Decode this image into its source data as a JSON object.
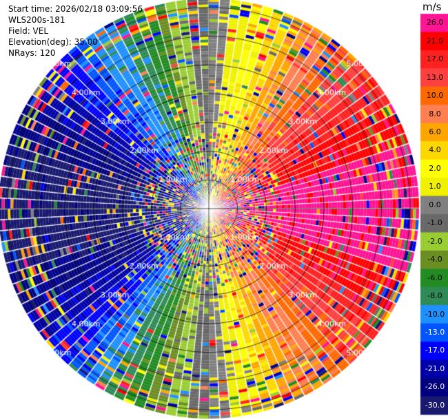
{
  "header": {
    "start_time": "Start time: 2026/02/18 03:09:56",
    "instrument": "WLS200s-181",
    "field": "Field: VEL",
    "elevation": "Elevation(deg): 35.00",
    "nrays": "NRays: 120"
  },
  "radar": {
    "range_ring_labels": [
      "1.00km",
      "2.00km",
      "3.00km",
      "4.00km",
      "5.00km"
    ],
    "num_rays": 120
  },
  "colorbar": {
    "unit": "m/s",
    "labels": [
      "26.0",
      "21.0",
      "17.0",
      "13.0",
      "10.0",
      "8.0",
      "6.0",
      "4.0",
      "2.0",
      "1.0",
      "0.0",
      "-1.0",
      "-2.0",
      "-4.0",
      "-6.0",
      "-8.0",
      "-10.0",
      "-13.0",
      "-17.0",
      "-21.0",
      "-26.0",
      "-30.0"
    ],
    "colors": [
      "#ff1493",
      "#ff0000",
      "#ff2020",
      "#ff4040",
      "#ff6a00",
      "#ff7f50",
      "#ffa500",
      "#ffd700",
      "#ffff00",
      "#f0f000",
      "#808080",
      "#696969",
      "#9acd32",
      "#6b8e23",
      "#228b22",
      "#2e8b57",
      "#1e90ff",
      "#0055ff",
      "#0000ff",
      "#0000aa",
      "#000080",
      "#191970"
    ],
    "label_colors": [
      "#000",
      "#000",
      "#000",
      "#000",
      "#000",
      "#000",
      "#000",
      "#000",
      "#000",
      "#000",
      "#000",
      "#000",
      "#000",
      "#000",
      "#000",
      "#000",
      "#000",
      "#fff",
      "#fff",
      "#fff",
      "#fff",
      "#fff"
    ]
  }
}
